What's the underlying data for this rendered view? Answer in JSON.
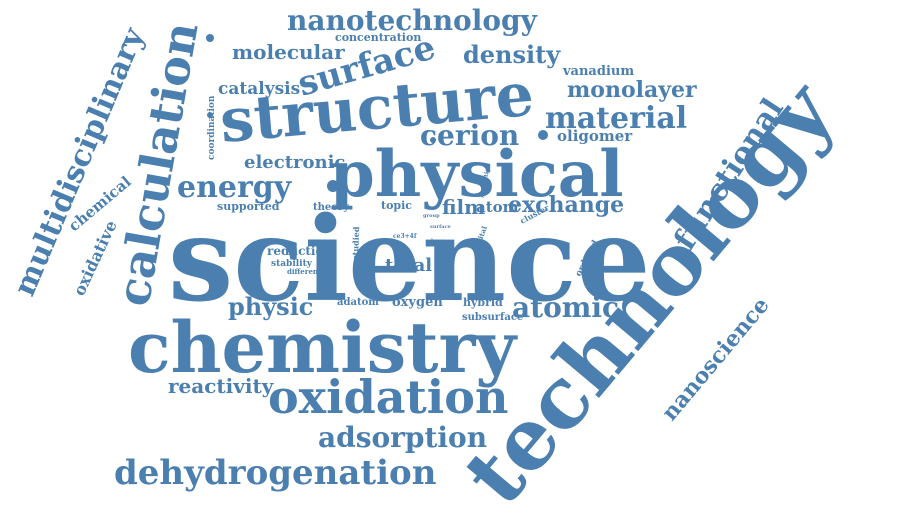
{
  "cloud": {
    "color": "#4a7fb0",
    "words": {
      "nanotechnology": "nanotechnology",
      "concentration": "concentration",
      "molecular": "molecular",
      "surface": "surface",
      "density": "density",
      "vanadium": "vanadium",
      "catalysis": "catalysis",
      "monolayer": "monolayer",
      "multidisciplinary": "multidisciplinary",
      "calculation": "calculation",
      "structure": "structure",
      "material": "material",
      "coordination": "coordination",
      "cerion": "cerion",
      "oligomer": "oligomer",
      "physical": "physical",
      "electronic": "electronic",
      "energy": "energy",
      "functional": "functional",
      "chemical": "chemical",
      "supported": "supported",
      "theory": "theory",
      "topic": "topic",
      "film": "film",
      "atom": "atom",
      "exchange": "exchange",
      "stabilities": "stabilities",
      "cluster": "cluster",
      "oxidative": "oxidative",
      "science": "science",
      "studied": "studied",
      "ce3_4f": "ce3+4f",
      "group": "group",
      "orbital": "orbital",
      "defect": "defect",
      "ordered": "ordered",
      "technology": "technology",
      "reduction": "reduction",
      "stability": "stability",
      "different": "different",
      "total": "total",
      "physic": "physic",
      "adatom": "adatom",
      "oxygen": "oxygen",
      "hybrid": "hybrid",
      "atomic": "atomic",
      "subsurface": "subsurface",
      "nanoscience": "nanoscience",
      "chemistry": "chemistry",
      "reactivity": "reactivity",
      "oxidation": "oxidation",
      "adsorption": "adsorption",
      "dehydrogenation": "dehydrogenation",
      "surface_small": "surface",
      "layer": "layer"
    }
  }
}
